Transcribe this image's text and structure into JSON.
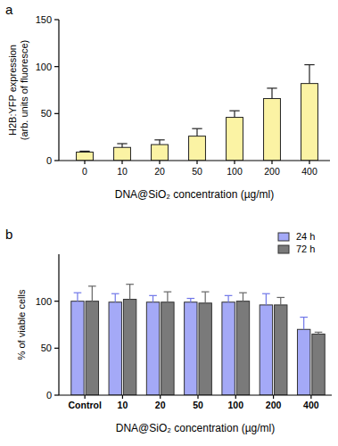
{
  "chart_data": [
    {
      "type": "bar",
      "title": "a",
      "xlabel": "DNA@SiO₂ concentration (µg/ml)",
      "ylabel": "H2B:YFP expression\n(arb. units of fluoresce)",
      "categories": [
        "0",
        "10",
        "20",
        "50",
        "100",
        "200",
        "400"
      ],
      "values": [
        9,
        14,
        17,
        26,
        46,
        66,
        82
      ],
      "errors": [
        1,
        4,
        5,
        8,
        7,
        11,
        20
      ],
      "color": "#fbf3a4",
      "ylim": [
        0,
        150
      ],
      "yticks": [
        0,
        50,
        100,
        150
      ],
      "grid": false
    },
    {
      "type": "bar",
      "title": "b",
      "xlabel": "DNA@SiO₂ concentration (µg/ml)",
      "ylabel": "% of viable cells",
      "categories": [
        "Control",
        "10",
        "20",
        "50",
        "100",
        "200",
        "400"
      ],
      "series": [
        {
          "name": "24 h",
          "color": "#a4a9f7",
          "values": [
            100,
            99,
            99,
            99,
            99,
            96,
            70
          ],
          "errors": [
            9,
            9,
            7,
            4,
            7,
            12,
            13
          ]
        },
        {
          "name": "72 h",
          "color": "#7a7a7a",
          "values": [
            100,
            102,
            99,
            98,
            100,
            96,
            65
          ],
          "errors": [
            16,
            16,
            11,
            12,
            9,
            8,
            2
          ]
        }
      ],
      "ylim": [
        0,
        150
      ],
      "yticks": [
        0,
        50,
        100
      ],
      "grid": false,
      "legend": "top-right"
    }
  ]
}
